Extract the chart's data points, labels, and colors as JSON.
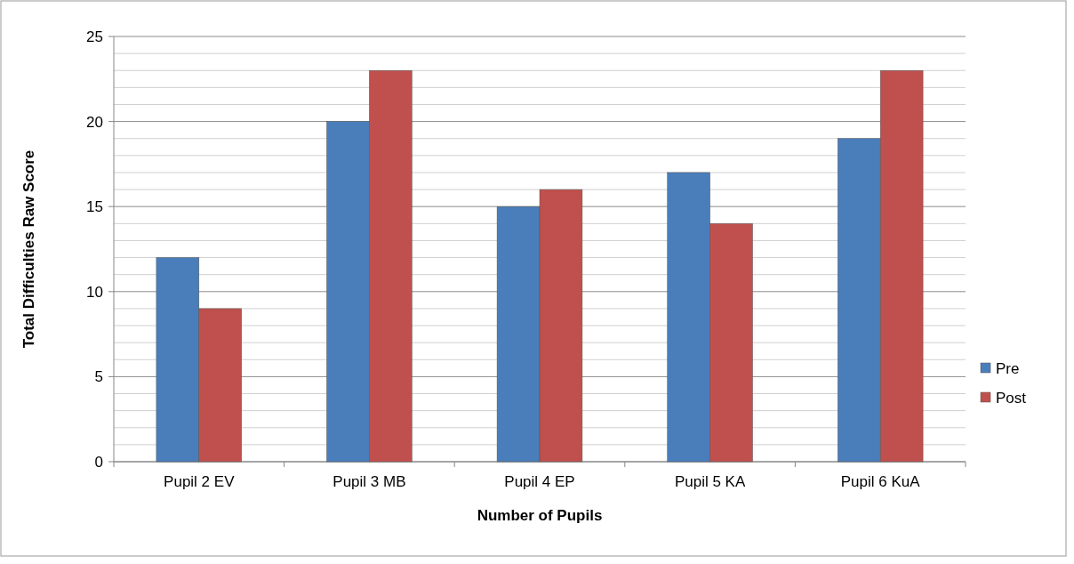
{
  "chart_data": {
    "type": "bar",
    "xlabel": "Number of Pupils",
    "ylabel": "Total Difficulties Raw Score",
    "categories": [
      "Pupil 2 EV",
      "Pupil 3 MB",
      "Pupil 4 EP",
      "Pupil 5 KA",
      "Pupil 6 KuA"
    ],
    "series": [
      {
        "name": "Pre",
        "color": "#4a7ebb",
        "values": [
          12,
          20,
          15,
          17,
          19
        ]
      },
      {
        "name": "Post",
        "color": "#c0504d",
        "values": [
          9,
          23,
          16,
          14,
          23
        ]
      }
    ],
    "ylim": [
      0,
      25
    ],
    "yticks": [
      0,
      {
        "value": 1,
        "label": null
      },
      {
        "value": 2,
        "label": null
      },
      {
        "value": 3,
        "label": null
      },
      {
        "value": 4,
        "label": null
      },
      5,
      {
        "value": 6,
        "label": null
      },
      {
        "value": 7,
        "label": null
      },
      {
        "value": 8,
        "label": null
      },
      {
        "value": 9,
        "label": null
      },
      10,
      {
        "value": 11,
        "label": null
      },
      {
        "value": 12,
        "label": null
      },
      {
        "value": 13,
        "label": null
      },
      {
        "value": 14,
        "label": null
      },
      15,
      {
        "value": 16,
        "label": null
      },
      {
        "value": 17,
        "label": null
      },
      {
        "value": 18,
        "label": null
      },
      {
        "value": 19,
        "label": null
      },
      20,
      {
        "value": 21,
        "label": null
      },
      {
        "value": 22,
        "label": null
      },
      {
        "value": 23,
        "label": null
      },
      {
        "value": 24,
        "label": null
      },
      25
    ],
    "grid": true,
    "legend": "right"
  }
}
